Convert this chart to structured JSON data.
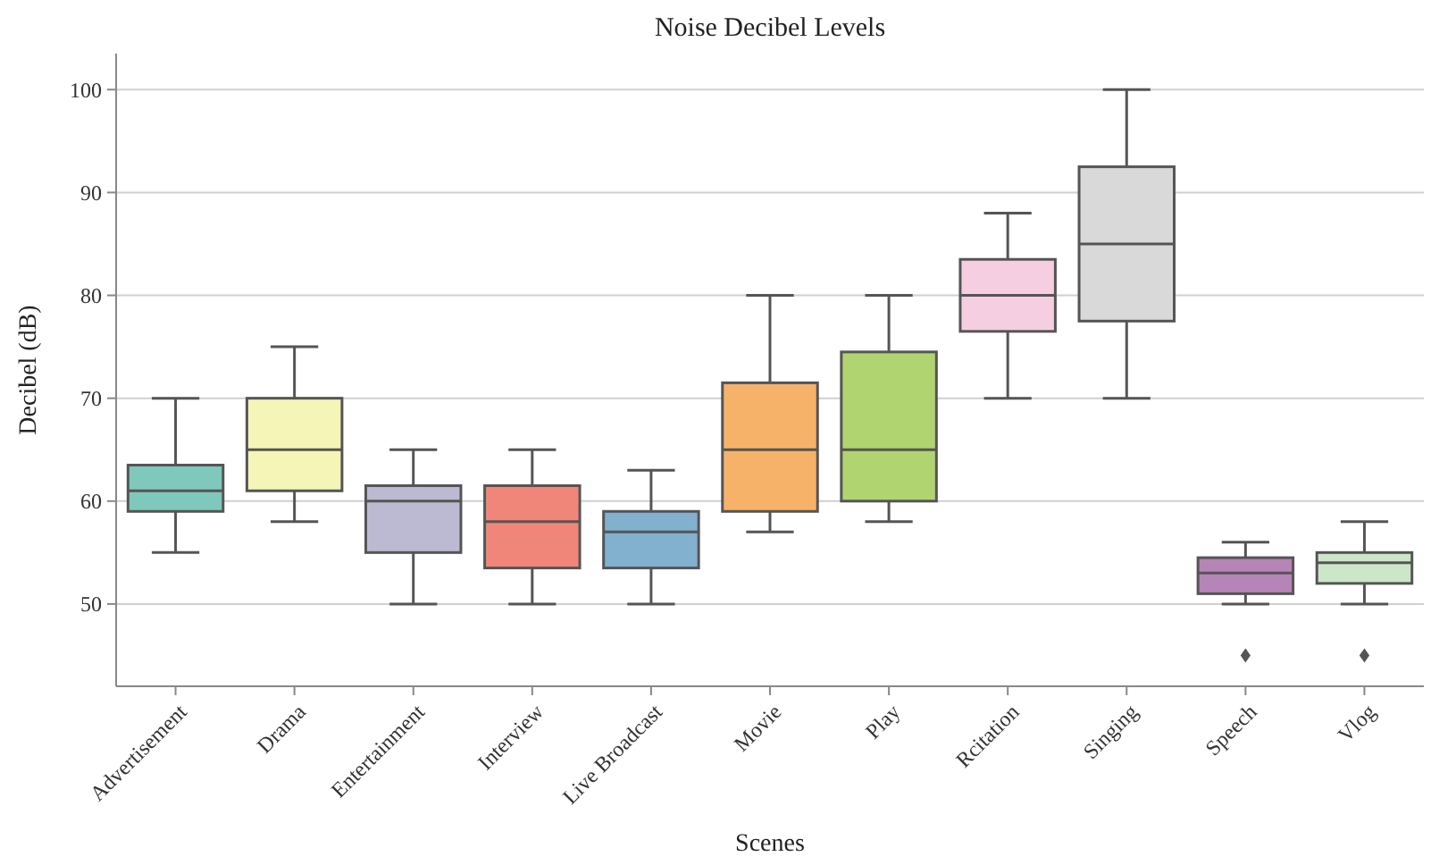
{
  "chart_data": {
    "type": "box",
    "title": "Noise Decibel Levels",
    "xlabel": "Scenes",
    "ylabel": "Decibel (dB)",
    "categories": [
      "Advertisement",
      "Drama",
      "Entertainment",
      "Interview",
      "Live Broadcast",
      "Movie",
      "Play",
      "Rcitation",
      "Singing",
      "Speech",
      "Vlog"
    ],
    "colors": [
      "#7fc9bc",
      "#f5f5b8",
      "#bcbad3",
      "#f08679",
      "#82b1cf",
      "#f7b26a",
      "#b0d470",
      "#f5cfe1",
      "#d9d9d9",
      "#b784b8",
      "#cce6c8"
    ],
    "boxes": [
      {
        "low": 55,
        "q1": 59,
        "median": 61,
        "q3": 63.5,
        "high": 70
      },
      {
        "low": 58,
        "q1": 61,
        "median": 65,
        "q3": 70,
        "high": 75
      },
      {
        "low": 50,
        "q1": 55,
        "median": 60,
        "q3": 61.5,
        "high": 65
      },
      {
        "low": 50,
        "q1": 53.5,
        "median": 58,
        "q3": 61.5,
        "high": 65
      },
      {
        "low": 50,
        "q1": 53.5,
        "median": 57,
        "q3": 59,
        "high": 63
      },
      {
        "low": 57,
        "q1": 59,
        "median": 65,
        "q3": 71.5,
        "high": 80
      },
      {
        "low": 58,
        "q1": 60,
        "median": 65,
        "q3": 74.5,
        "high": 80
      },
      {
        "low": 70,
        "q1": 76.5,
        "median": 80,
        "q3": 83.5,
        "high": 88
      },
      {
        "low": 70,
        "q1": 77.5,
        "median": 85,
        "q3": 92.5,
        "high": 100
      },
      {
        "low": 50,
        "q1": 51,
        "median": 53,
        "q3": 54.5,
        "high": 56,
        "outliers": [
          45
        ]
      },
      {
        "low": 50,
        "q1": 52,
        "median": 54,
        "q3": 55,
        "high": 58,
        "outliers": [
          45
        ]
      }
    ],
    "ylim": [
      42,
      103.5
    ],
    "yticks": [
      50,
      60,
      70,
      80,
      90,
      100
    ],
    "grid": "y",
    "marker": "diamond"
  }
}
